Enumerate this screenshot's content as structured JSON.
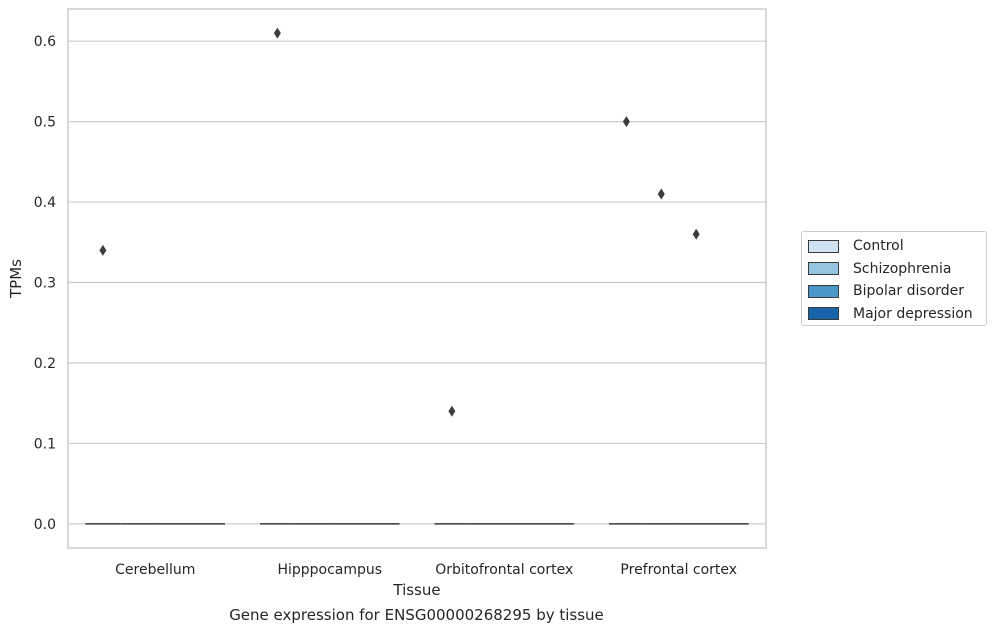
{
  "colors": {
    "background": "#ffffff",
    "grid": "#cccccc",
    "frame": "#cccccc",
    "text": "#262626",
    "outlier": "#3d3d3d",
    "median": "#3d3d3d"
  },
  "chart_data": {
    "type": "box",
    "title": "",
    "caption": "Gene expression for ENSG00000268295 by tissue",
    "xlabel": "Tissue",
    "ylabel": "TPMs",
    "categories": [
      "Cerebellum",
      "Hipppocampus",
      "Orbitofrontal cortex",
      "Prefrontal cortex"
    ],
    "yticks": [
      "0.0",
      "0.1",
      "0.2",
      "0.3",
      "0.4",
      "0.5",
      "0.6"
    ],
    "ylim": [
      -0.03,
      0.64
    ],
    "grid": "horizontal",
    "legend_position": "right",
    "series": [
      {
        "name": "Control",
        "color": "#d0e1f2",
        "median": 0.0
      },
      {
        "name": "Schizophrenia",
        "color": "#94c4df",
        "median": 0.0
      },
      {
        "name": "Bipolar disorder",
        "color": "#4a98c9",
        "median": 0.0
      },
      {
        "name": "Major depression",
        "color": "#1764ab",
        "median": 0.0
      }
    ],
    "outliers": [
      {
        "category": "Cerebellum",
        "series": "Control",
        "value": 0.34
      },
      {
        "category": "Hipppocampus",
        "series": "Control",
        "value": 0.61
      },
      {
        "category": "Orbitofrontal cortex",
        "series": "Control",
        "value": 0.14
      },
      {
        "category": "Prefrontal cortex",
        "series": "Control",
        "value": 0.5
      },
      {
        "category": "Prefrontal cortex",
        "series": "Schizophrenia",
        "value": 0.41
      },
      {
        "category": "Prefrontal cortex",
        "series": "Bipolar disorder",
        "value": 0.36
      }
    ]
  }
}
